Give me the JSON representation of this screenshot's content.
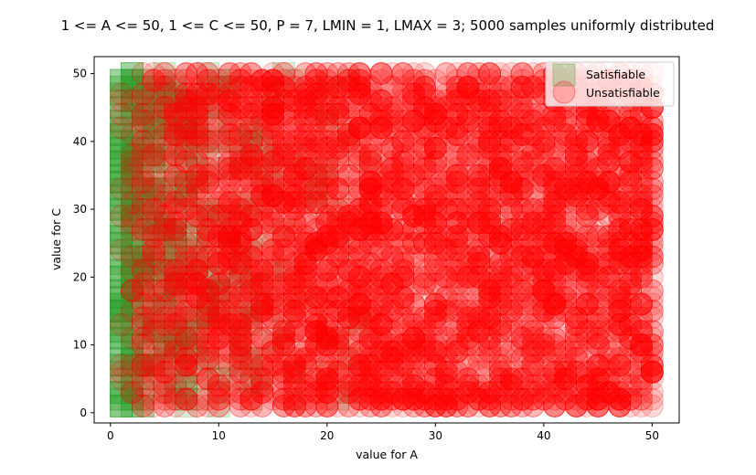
{
  "chart_data": {
    "type": "scatter",
    "title": "1 <= A <= 50, 1 <= C <= 50, P = 7, LMIN = 1, LMAX = 3; 5000 samples uniformly distributed",
    "xlabel": "value for A",
    "ylabel": "value for C",
    "xlim": [
      -1.5,
      52.5
    ],
    "ylim": [
      -1.5,
      52.5
    ],
    "xticks": [
      0,
      10,
      20,
      30,
      40,
      50
    ],
    "yticks": [
      0,
      10,
      20,
      30,
      40,
      50
    ],
    "grid": false,
    "legend": "top-right",
    "domain": {
      "a_min": 1,
      "a_max": 50,
      "c_min": 1,
      "c_max": 50
    },
    "samples": 5000,
    "series": [
      {
        "name": "Satisfiable",
        "marker": "square",
        "color": "#2ca02c",
        "opacity": 0.18,
        "note_region": "concentrated at A <= 8, scattered up to A ~ 25"
      },
      {
        "name": "Unsatisfiable",
        "marker": "circle",
        "color": "#ff0000",
        "opacity": 0.15,
        "note_region": "all A from ~2 to 50, dominant for A >= 10"
      }
    ]
  }
}
